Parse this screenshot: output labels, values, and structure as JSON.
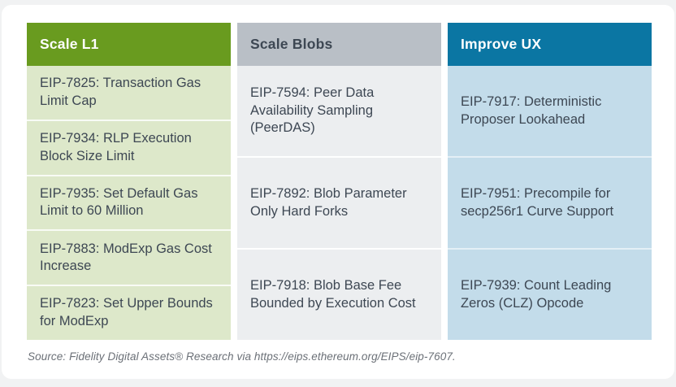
{
  "table": {
    "columns": [
      {
        "id": "scale-l1",
        "header": "Scale L1",
        "header_bg": "#699B1F",
        "header_text_color": "#FFFFFF",
        "body_bg": "#DDE8CA",
        "items": [
          "EIP-7825: Transaction Gas Limit Cap",
          "EIP-7934: RLP Execution Block Size Limit",
          "EIP-7935: Set Default Gas Limit to 60 Million",
          "EIP-7883: ModExp Gas Cost Increase",
          "EIP-7823: Set Upper Bounds for ModExp"
        ]
      },
      {
        "id": "scale-blobs",
        "header": "Scale Blobs",
        "header_bg": "#B9BFC6",
        "header_text_color": "#3D4753",
        "body_bg": "#ECEEF0",
        "items": [
          "EIP-7594: Peer Data Availability Sampling (PeerDAS)",
          "EIP-7892: Blob Parameter Only Hard Forks",
          "EIP-7918: Blob Base Fee Bounded by Execution Cost"
        ]
      },
      {
        "id": "improve-ux",
        "header": "Improve UX",
        "header_bg": "#0B76A3",
        "header_text_color": "#FFFFFF",
        "body_bg": "#C3DCEA",
        "items": [
          "EIP-7917: Deterministic Proposer Lookahead",
          "EIP-7951: Precompile for secp256r1 Curve Support",
          "EIP-7939: Count Leading Zeros (CLZ) Opcode"
        ]
      }
    ],
    "text_color": "#3D4753"
  },
  "footer": {
    "source": "Source: Fidelity Digital Assets® Research via https://eips.ethereum.org/EIPS/eip-7607."
  }
}
